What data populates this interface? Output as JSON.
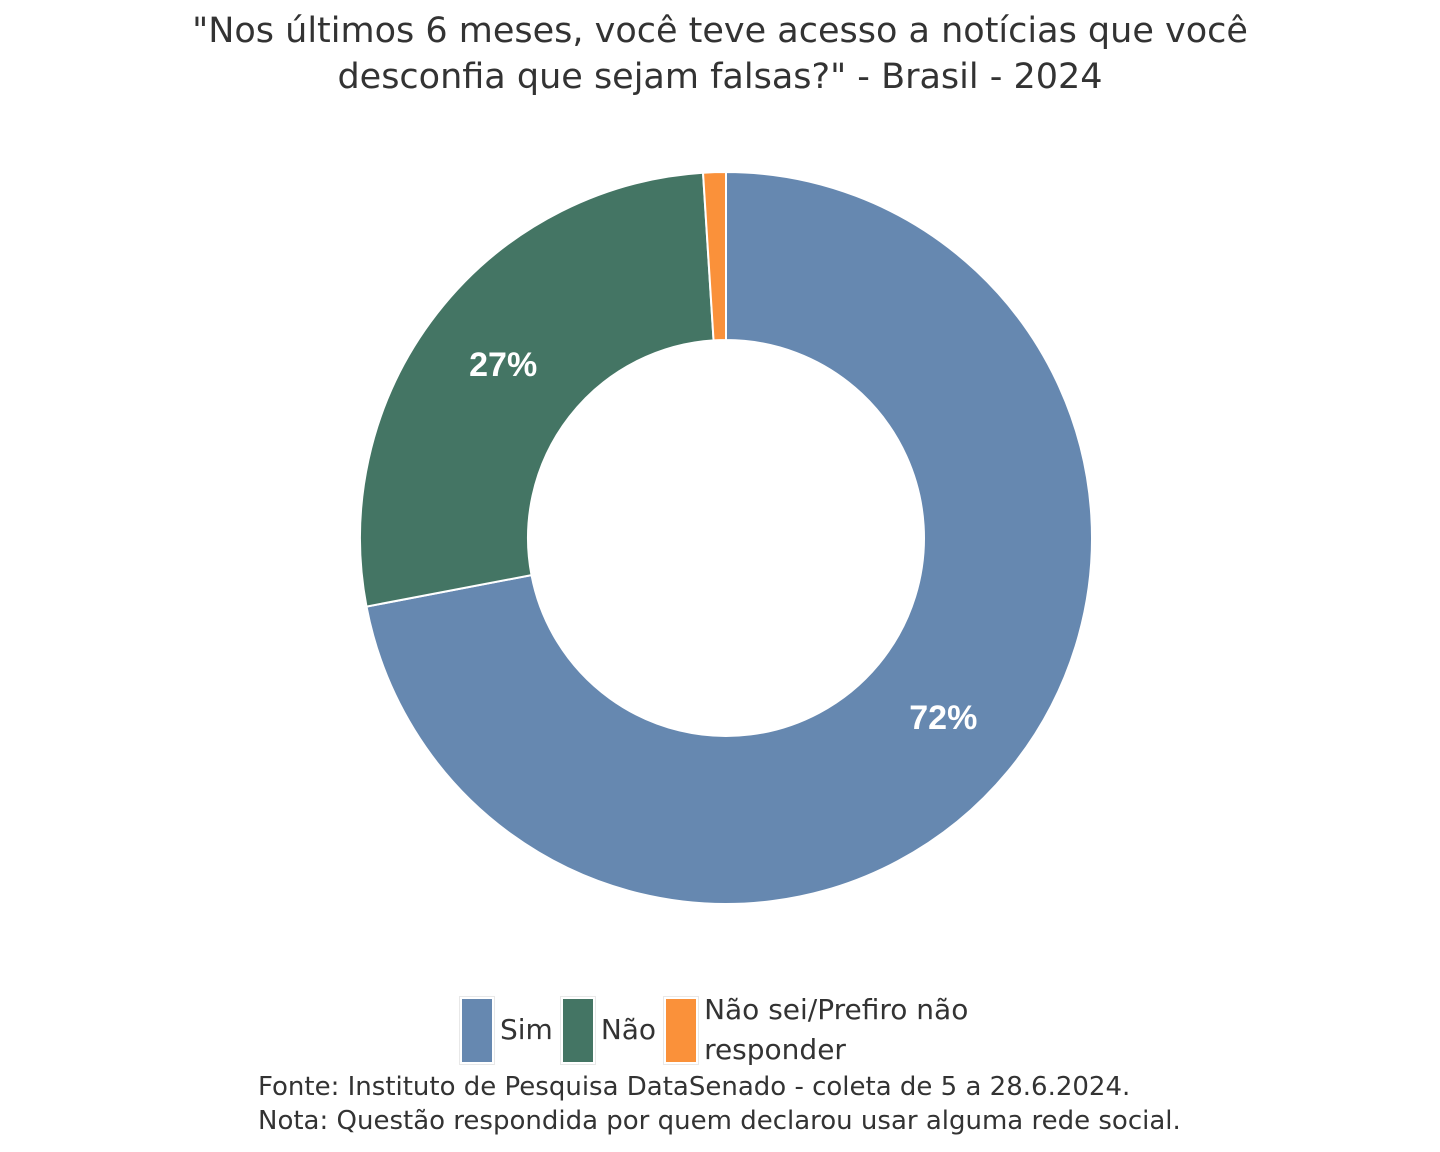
{
  "chart_data": {
    "type": "pie",
    "title_lines": [
      "\"Nos últimos 6 meses, você teve acesso a notícias que você",
      "desconfia que sejam falsas?\" - Brasil - 2024"
    ],
    "categories": [
      "Sim",
      "Não",
      "Não sei/Prefiro não responder"
    ],
    "values": [
      72,
      27,
      1
    ],
    "data_labels": [
      "72%",
      "27%",
      ""
    ],
    "colors": [
      "#6688B0",
      "#447564",
      "#FA913A"
    ],
    "hole": "donut",
    "legend_position": "bottom",
    "notes": [
      "Fonte: Instituto de Pesquisa DataSenado - coleta de 5 a 28.6.2024.",
      "Nota: Questão respondida por quem declarou usar alguma rede social."
    ]
  }
}
